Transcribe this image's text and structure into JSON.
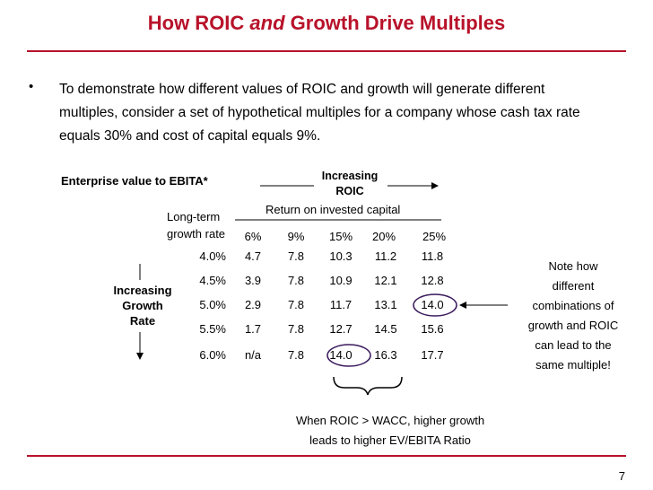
{
  "title": {
    "pre": "How ROIC ",
    "em": "and",
    "post": " Growth Drive Multiples"
  },
  "bullet": "To demonstrate how different values of ROIC and growth will generate different multiples, consider a set of hypothetical multiples for a company whose cash tax rate equals 30% and cost of capital equals 9%.",
  "table": {
    "caption": "Enterprise value to EBITA*",
    "increasing_roic": [
      "Increasing",
      "ROIC"
    ],
    "roic_header": "Return on invested capital",
    "row_header": [
      "Long-term",
      "growth rate"
    ],
    "columns": [
      "6%",
      "9%",
      "15%",
      "20%",
      "25%"
    ],
    "rows": [
      {
        "label": "4.0%",
        "values": [
          "4.7",
          "7.8",
          "10.3",
          "11.2",
          "11.8"
        ]
      },
      {
        "label": "4.5%",
        "values": [
          "3.9",
          "7.8",
          "10.9",
          "12.1",
          "12.8"
        ]
      },
      {
        "label": "5.0%",
        "values": [
          "2.9",
          "7.8",
          "11.7",
          "13.1",
          "14.0"
        ]
      },
      {
        "label": "5.5%",
        "values": [
          "1.7",
          "7.8",
          "12.7",
          "14.5",
          "15.6"
        ]
      },
      {
        "label": "6.0%",
        "values": [
          "n/a",
          "7.8",
          "14.0",
          "16.3",
          "17.7"
        ]
      }
    ],
    "increasing_growth": [
      "Increasing",
      "Growth",
      "Rate"
    ]
  },
  "note": [
    "Note how",
    "different",
    "combinations of",
    "growth and ROIC",
    "can lead to the",
    "same multiple!"
  ],
  "footnote": [
    "When ROIC > WACC, higher growth",
    "leads to higher EV/EBITA Ratio"
  ],
  "page_number": "7",
  "colors": {
    "accent": "#b8122a",
    "circle": "#3a1a5c"
  }
}
